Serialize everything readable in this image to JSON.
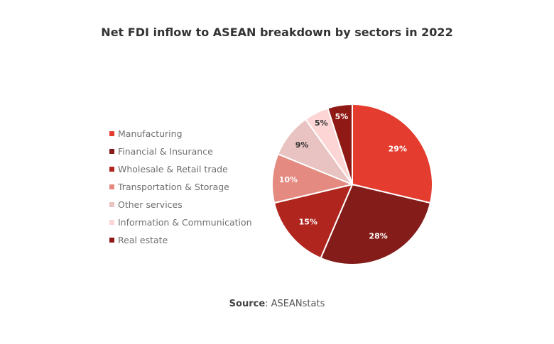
{
  "chart_data": {
    "type": "pie",
    "title": "Net FDI inflow to ASEAN breakdown by sectors in 2022",
    "categories": [
      "Manufacturing",
      "Financial & Insurance",
      "Wholesale & Retail trade",
      "Transportation & Storage",
      "Other services",
      "Information & Communication",
      "Real estate"
    ],
    "values": [
      29,
      28,
      15,
      10,
      9,
      5,
      5
    ],
    "data_labels": [
      "29%",
      "28%",
      "15%",
      "10%",
      "9%",
      "5%",
      "5%"
    ],
    "colors": [
      "#e43c2f",
      "#841d1a",
      "#b0261f",
      "#e48a80",
      "#e8c3c1",
      "#fdd5d5",
      "#8f1a15"
    ],
    "label_colors": [
      "#ffffff",
      "#ffffff",
      "#ffffff",
      "#ffffff",
      "#333333",
      "#333333",
      "#ffffff"
    ],
    "legend_position": "left"
  },
  "source": {
    "label": "Source",
    "text": ": ASEANstats"
  }
}
